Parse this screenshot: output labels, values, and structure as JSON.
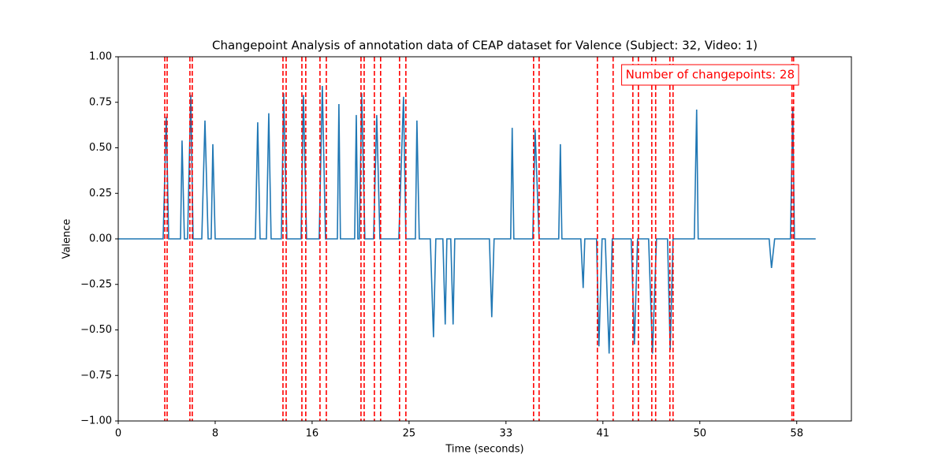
{
  "chart_data": {
    "type": "line",
    "title": "Changepoint Analysis of annotation data of CEAP dataset for Valence (Subject: 32, Video: 1)",
    "xlabel": "Time (seconds)",
    "ylabel": "Valence",
    "annotation": "Number of changepoints: 28",
    "color": "#1f77b4",
    "x": [
      0,
      3.82,
      4.09,
      4.29,
      5.3,
      5.43,
      5.63,
      5.9,
      6.17,
      6.37,
      7.11,
      7.38,
      7.65,
      7.91,
      8.05,
      8.25,
      11.67,
      11.87,
      12.07,
      12.61,
      12.81,
      13.01,
      13.88,
      14.08,
      14.35,
      15.56,
      15.76,
      16.03,
      17.1,
      17.37,
      17.64,
      18.65,
      18.78,
      18.91,
      20.12,
      20.26,
      20.39,
      20.52,
      20.72,
      20.99,
      21.73,
      22.0,
      22.27,
      23.88,
      24.28,
      24.48,
      25.29,
      25.42,
      25.62,
      26.56,
      26.83,
      27.03,
      27.63,
      27.83,
      27.97,
      28.3,
      28.5,
      28.64,
      31.59,
      31.79,
      31.99,
      33.4,
      33.53,
      33.67,
      35.28,
      35.48,
      35.82,
      37.49,
      37.63,
      37.76,
      39.37,
      39.57,
      39.71,
      40.71,
      40.91,
      41.18,
      41.45,
      41.78,
      42.05,
      43.66,
      43.93,
      44.2,
      45.14,
      45.47,
      45.81,
      46.75,
      46.98,
      47.22,
      49.03,
      49.23,
      49.36,
      55.4,
      55.6,
      55.87,
      57.21,
      57.41,
      57.55,
      59.36
    ],
    "values": [
      0,
      0,
      0.67,
      0,
      0,
      0.54,
      0,
      0,
      0.79,
      0,
      0,
      0.65,
      0,
      0,
      0.52,
      0,
      0,
      0.64,
      0,
      0,
      0.69,
      0,
      0,
      0.8,
      0,
      0,
      0.79,
      0,
      0,
      0.84,
      0,
      0,
      0.74,
      0,
      0,
      0.68,
      0,
      0,
      0.8,
      0,
      0,
      0.68,
      0,
      0,
      0.78,
      0,
      0,
      0.65,
      0,
      0,
      -0.54,
      0,
      0,
      -0.47,
      0,
      0,
      -0.47,
      0,
      0,
      -0.43,
      0,
      0,
      0.61,
      0,
      0,
      0.6,
      0,
      0,
      0.52,
      0,
      0,
      -0.27,
      0,
      0,
      -0.59,
      0,
      0,
      -0.63,
      0,
      0,
      -0.58,
      0,
      0,
      -0.63,
      0,
      0,
      -0.61,
      0,
      0,
      0.71,
      0,
      0,
      -0.16,
      0,
      0,
      0.72,
      0,
      0
    ],
    "changepoints": {
      "color": "#ff0000",
      "x": [
        3.96,
        4.16,
        6.1,
        6.3,
        14.02,
        14.29,
        15.63,
        15.96,
        17.17,
        17.71,
        20.66,
        20.93,
        21.8,
        22.33,
        23.94,
        24.48,
        35.35,
        35.82,
        40.78,
        42.12,
        43.8,
        44.27,
        45.41,
        45.74,
        46.95,
        47.22,
        57.34,
        57.48
      ]
    },
    "xlim": [
      0,
      62.4
    ],
    "ylim": [
      -1,
      1
    ],
    "xticks": [
      0,
      {
        "value": 8.25,
        "label": "8"
      },
      {
        "value": 16.5,
        "label": "16"
      },
      {
        "value": 24.75,
        "label": "25"
      },
      {
        "value": 33,
        "label": "33"
      },
      {
        "value": 41.25,
        "label": "41"
      },
      {
        "value": 49.5,
        "label": "50"
      },
      {
        "value": 57.75,
        "label": "58"
      }
    ],
    "yticks": [
      {
        "value": -1,
        "label": "−1.00"
      },
      {
        "value": -0.75,
        "label": "−0.75"
      },
      {
        "value": -0.5,
        "label": "−0.50"
      },
      {
        "value": -0.25,
        "label": "−0.25"
      },
      {
        "value": 0,
        "label": "0.00"
      },
      {
        "value": 0.25,
        "label": "0.25"
      },
      {
        "value": 0.5,
        "label": "0.50"
      },
      {
        "value": 0.75,
        "label": "0.75"
      },
      {
        "value": 1,
        "label": "1.00"
      }
    ]
  }
}
